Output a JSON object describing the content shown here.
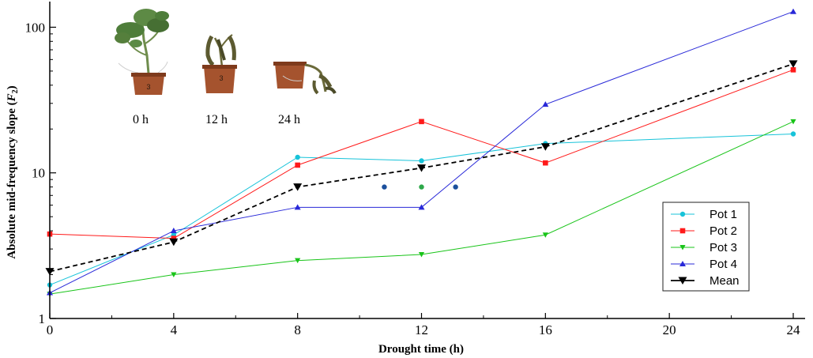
{
  "chart_data": {
    "type": "line",
    "xlabel": "Drought time (h)",
    "ylabel_prefix": "Absolute mid-frequency slope (",
    "ylabel_var": "F",
    "ylabel_sub": "2",
    "ylabel_suffix": ")",
    "yscale": "log",
    "xlim": [
      0,
      24
    ],
    "ylim": [
      1,
      150
    ],
    "xticks": [
      0,
      4,
      8,
      12,
      16,
      20,
      24
    ],
    "yticks": [
      1,
      10,
      100
    ],
    "x": [
      0,
      4,
      8,
      12,
      16,
      24
    ],
    "series": [
      {
        "name": "Pot 1",
        "color": "#17c3d9",
        "marker": "circle",
        "dashed": false,
        "values": [
          1.7,
          3.75,
          12.8,
          12.1,
          15.9,
          18.5
        ]
      },
      {
        "name": "Pot 2",
        "color": "#ff1a1a",
        "marker": "square",
        "dashed": false,
        "values": [
          3.8,
          3.55,
          11.3,
          22.5,
          11.7,
          51.0
        ]
      },
      {
        "name": "Pot 3",
        "color": "#19c419",
        "marker": "triangle-down",
        "dashed": false,
        "values": [
          1.47,
          2.0,
          2.5,
          2.75,
          3.75,
          22.5
        ]
      },
      {
        "name": "Pot 4",
        "color": "#2828d8",
        "marker": "triangle-up",
        "dashed": false,
        "values": [
          1.5,
          4.0,
          5.8,
          5.8,
          29.5,
          128.0
        ]
      },
      {
        "name": "Mean",
        "color": "#000000",
        "marker": "triangle-down-big",
        "dashed": true,
        "values": [
          2.1,
          3.35,
          8.0,
          10.8,
          15.1,
          56.0
        ]
      }
    ],
    "separator_dots": [
      {
        "x": 10.8,
        "y": 8.0,
        "color": "#1b4f9c"
      },
      {
        "x": 12.0,
        "y": 8.0,
        "color": "#2ea84a"
      },
      {
        "x": 13.1,
        "y": 8.0,
        "color": "#1b4f9c"
      }
    ],
    "legend_position": "bottom-right",
    "photos": [
      {
        "label": "0 h",
        "pot_number": "3"
      },
      {
        "label": "12 h",
        "pot_number": "3"
      },
      {
        "label": "24 h",
        "pot_number": ""
      }
    ]
  },
  "colors": {
    "pot": "#a5532e",
    "pot_rim": "#7e3a1c",
    "leaf_fresh": "#4e7d3a",
    "leaf_wilted": "#6b6a3a",
    "stem": "#6f8d4d"
  }
}
